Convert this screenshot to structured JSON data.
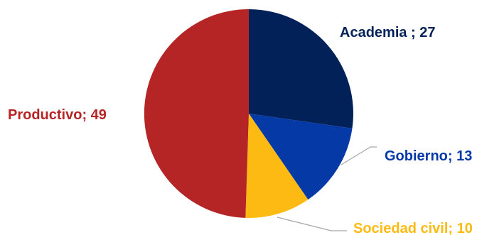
{
  "chart_data": {
    "type": "pie",
    "categories": [
      "Academia",
      "Gobierno",
      "Sociedad civil",
      "Productivo"
    ],
    "values": [
      27,
      13,
      10,
      49
    ],
    "colors": [
      "#022159",
      "#0439A6",
      "#FDBA12",
      "#B52526"
    ],
    "start_angle": "12 o'clock",
    "direction": "clockwise",
    "data_labels": [
      "Academia ; 27",
      "Gobierno; 13",
      "Sociedad civil; 10",
      "Productivo; 49"
    ],
    "title": "",
    "legend": "none"
  }
}
